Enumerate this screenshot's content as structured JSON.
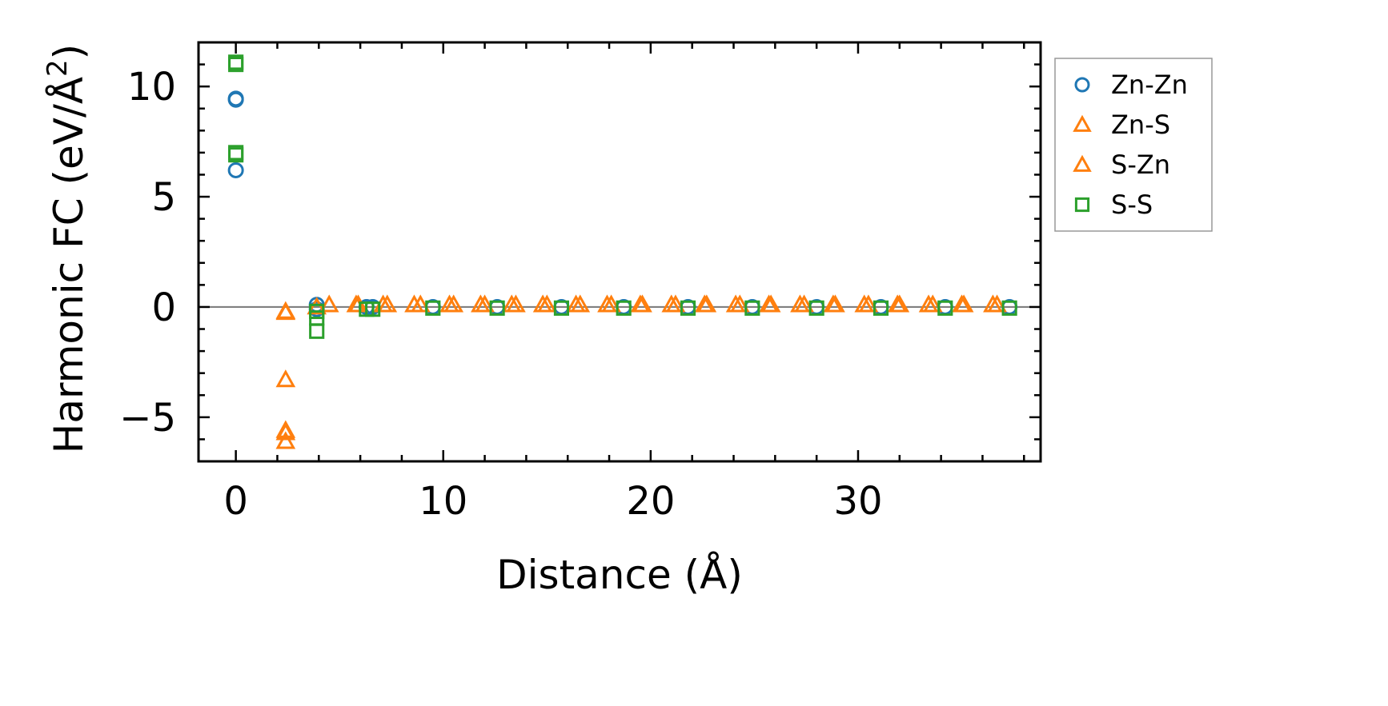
{
  "chart_data": {
    "type": "scatter",
    "xlabel": "Distance (Å)",
    "ylabel": "Harmonic FC (eV/Å",
    "ylabel_superscript": "2",
    "ylabel_close": ")",
    "xlim": [
      -1.8,
      38.8
    ],
    "ylim": [
      -7.0,
      12.0
    ],
    "x_ticks": [
      0,
      10,
      20,
      30
    ],
    "x_tick_labels": [
      "0",
      "10",
      "20",
      "30"
    ],
    "y_ticks": [
      -5,
      0,
      5,
      10
    ],
    "y_tick_labels": [
      "−5",
      "0",
      "5",
      "10"
    ],
    "zero_line": true,
    "grid": false,
    "legend_position": "outside-right-top",
    "series": [
      {
        "name": "Zn-Zn",
        "marker": "circle",
        "color": "#1f77b4",
        "points": [
          [
            0,
            9.45
          ],
          [
            0,
            9.4
          ],
          [
            0,
            6.2
          ],
          [
            3.9,
            0.1
          ],
          [
            3.9,
            -0.1
          ],
          [
            6.3,
            0.0
          ],
          [
            6.6,
            0.0
          ],
          [
            9.5,
            0.0
          ],
          [
            12.6,
            0.0
          ],
          [
            15.7,
            0.0
          ],
          [
            18.7,
            0.0
          ],
          [
            21.8,
            0.0
          ],
          [
            24.9,
            0.0
          ],
          [
            28.0,
            0.0
          ],
          [
            31.1,
            0.0
          ],
          [
            34.2,
            0.0
          ],
          [
            37.3,
            0.0
          ]
        ]
      },
      {
        "name": "Zn-S",
        "marker": "triangle",
        "color": "#ff7f0e",
        "points": [
          [
            2.4,
            -0.2
          ],
          [
            2.4,
            -3.3
          ],
          [
            2.4,
            -5.7
          ],
          [
            2.4,
            -6.1
          ],
          [
            4.5,
            0.1
          ],
          [
            5.8,
            0.1
          ],
          [
            7.1,
            0.1
          ],
          [
            8.6,
            0.1
          ],
          [
            10.3,
            0.1
          ],
          [
            11.8,
            0.1
          ],
          [
            13.3,
            0.1
          ],
          [
            14.8,
            0.1
          ],
          [
            16.4,
            0.1
          ],
          [
            17.9,
            0.1
          ],
          [
            19.5,
            0.1
          ],
          [
            21.0,
            0.1
          ],
          [
            22.6,
            0.1
          ],
          [
            24.1,
            0.1
          ],
          [
            25.7,
            0.1
          ],
          [
            27.2,
            0.1
          ],
          [
            28.8,
            0.1
          ],
          [
            30.3,
            0.1
          ],
          [
            31.9,
            0.1
          ],
          [
            33.4,
            0.1
          ],
          [
            35.0,
            0.1
          ],
          [
            36.5,
            0.1
          ]
        ]
      },
      {
        "name": "S-Zn",
        "marker": "triangle",
        "color": "#ff7f0e",
        "points": [
          [
            2.4,
            -0.25
          ],
          [
            2.4,
            -5.6
          ],
          [
            3.9,
            0.0
          ],
          [
            5.9,
            0.1
          ],
          [
            7.3,
            0.1
          ],
          [
            8.9,
            0.1
          ],
          [
            10.5,
            0.1
          ],
          [
            12.0,
            0.1
          ],
          [
            13.5,
            0.1
          ],
          [
            15.0,
            0.1
          ],
          [
            16.6,
            0.1
          ],
          [
            18.1,
            0.1
          ],
          [
            19.6,
            0.1
          ],
          [
            21.2,
            0.1
          ],
          [
            22.7,
            0.1
          ],
          [
            24.3,
            0.1
          ],
          [
            25.8,
            0.1
          ],
          [
            27.4,
            0.1
          ],
          [
            28.9,
            0.1
          ],
          [
            30.5,
            0.1
          ],
          [
            32.0,
            0.1
          ],
          [
            33.6,
            0.1
          ],
          [
            35.1,
            0.1
          ],
          [
            36.7,
            0.1
          ]
        ]
      },
      {
        "name": "S-S",
        "marker": "square",
        "color": "#2ca02c",
        "points": [
          [
            0,
            11.1
          ],
          [
            0,
            11.0
          ],
          [
            0,
            7.0
          ],
          [
            0,
            6.9
          ],
          [
            3.9,
            -0.2
          ],
          [
            3.9,
            -0.5
          ],
          [
            3.9,
            -1.1
          ],
          [
            6.3,
            -0.1
          ],
          [
            6.6,
            -0.1
          ],
          [
            9.5,
            -0.05
          ],
          [
            12.6,
            -0.05
          ],
          [
            15.7,
            -0.05
          ],
          [
            18.7,
            -0.05
          ],
          [
            21.8,
            -0.05
          ],
          [
            24.9,
            -0.05
          ],
          [
            28.0,
            -0.05
          ],
          [
            31.1,
            -0.05
          ],
          [
            34.2,
            -0.05
          ],
          [
            37.3,
            -0.05
          ]
        ]
      }
    ]
  }
}
